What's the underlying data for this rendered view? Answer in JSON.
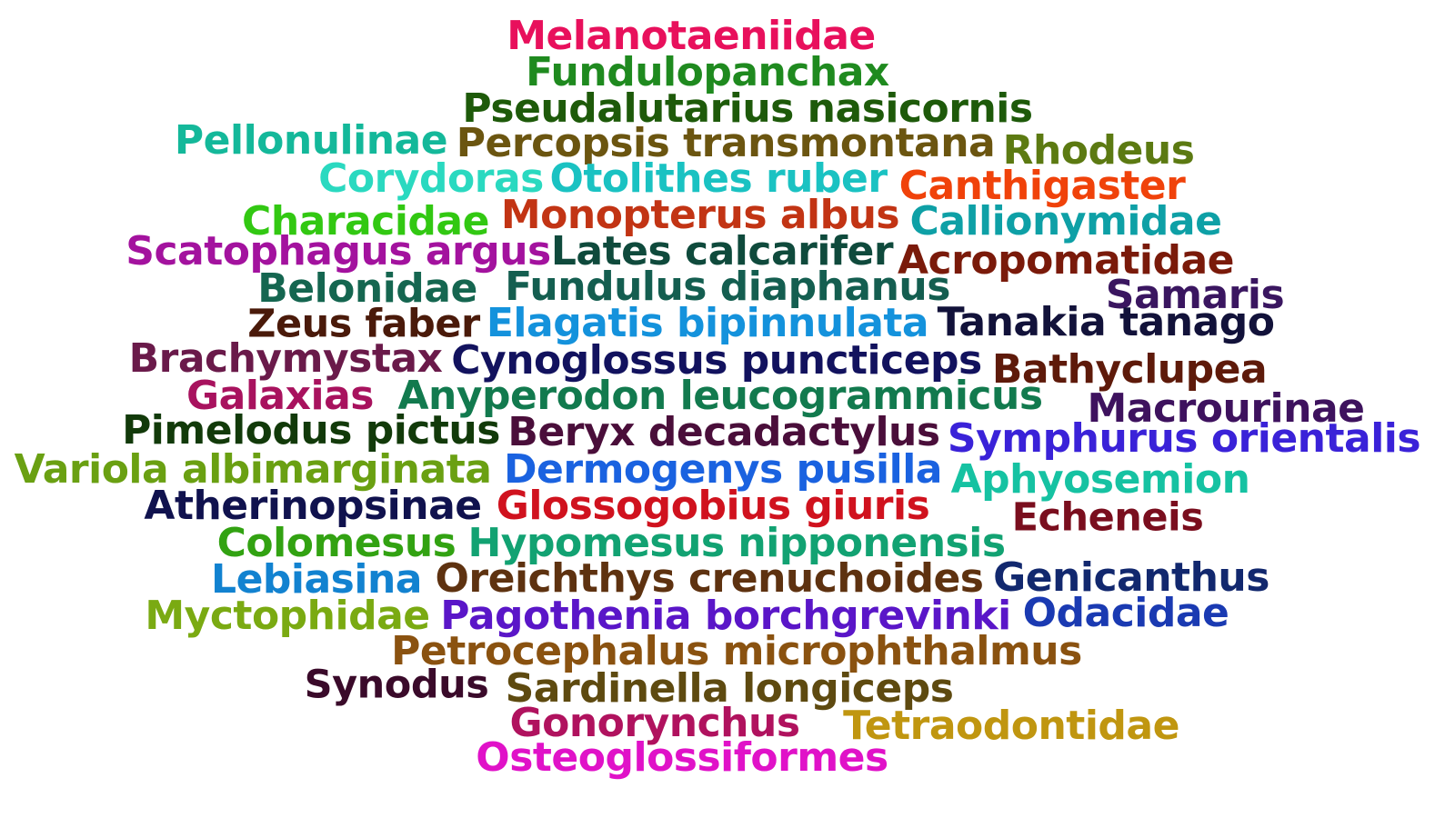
{
  "words": [
    {
      "text": "Melanotaeniidae",
      "color": "#e8105c"
    },
    {
      "text": "Fundulopanchax",
      "color": "#1f8a1f"
    },
    {
      "text": "Pseudalutarius nasicornis",
      "color": "#1e5a0a"
    },
    {
      "text": "Pellonulinae",
      "color": "#14b89a"
    },
    {
      "text": "Percopsis transmontana",
      "color": "#6b5510"
    },
    {
      "text": "Rhodeus",
      "color": "#5c7a12"
    },
    {
      "text": "Corydoras",
      "color": "#2ad9c0"
    },
    {
      "text": "Otolithes ruber",
      "color": "#1ac2c2"
    },
    {
      "text": "Canthigaster",
      "color": "#f0420a"
    },
    {
      "text": "Characidae",
      "color": "#32c812"
    },
    {
      "text": "Monopterus albus",
      "color": "#c23414"
    },
    {
      "text": "Callionymidae",
      "color": "#0ea0a6"
    },
    {
      "text": "Scatophagus argus",
      "color": "#a3129e"
    },
    {
      "text": "Lates calcarifer",
      "color": "#0f4a3c"
    },
    {
      "text": "Acropomatidae",
      "color": "#7a1a0a"
    },
    {
      "text": "Belonidae",
      "color": "#156650"
    },
    {
      "text": "Fundulus diaphanus",
      "color": "#145e50"
    },
    {
      "text": "Samaris",
      "color": "#3a1660"
    },
    {
      "text": "Zeus faber",
      "color": "#4a1a0a"
    },
    {
      "text": "Elagatis bipinnulata",
      "color": "#1492dc"
    },
    {
      "text": "Tanakia tanago",
      "color": "#12123a"
    },
    {
      "text": "Brachymystax",
      "color": "#6a1a4a"
    },
    {
      "text": "Cynoglossus puncticeps",
      "color": "#12125e"
    },
    {
      "text": "Bathyclupea",
      "color": "#5e1a0a"
    },
    {
      "text": "Galaxias",
      "color": "#a8125e"
    },
    {
      "text": "Anyperodon leucogrammicus",
      "color": "#127a4e"
    },
    {
      "text": "Macrourinae",
      "color": "#3e125e"
    },
    {
      "text": "Pimelodus pictus",
      "color": "#123a0a"
    },
    {
      "text": "Beryx decadactylus",
      "color": "#4a0e3a"
    },
    {
      "text": "Symphurus orientalis",
      "color": "#3a22d8"
    },
    {
      "text": "Variola albimarginata",
      "color": "#6aa012"
    },
    {
      "text": "Dermogenys pusilla",
      "color": "#1a62e0"
    },
    {
      "text": "Aphyosemion",
      "color": "#16c2a2"
    },
    {
      "text": "Atherinopsinae",
      "color": "#10124e"
    },
    {
      "text": "Glossogobius giuris",
      "color": "#d0121e"
    },
    {
      "text": "Echeneis",
      "color": "#7a0e1e"
    },
    {
      "text": "Colomesus",
      "color": "#32a212"
    },
    {
      "text": "Hypomesus nipponensis",
      "color": "#12a272"
    },
    {
      "text": "Lebiasina",
      "color": "#1282d0"
    },
    {
      "text": "Oreichthys crenuchoides",
      "color": "#5e3210"
    },
    {
      "text": "Genicanthus",
      "color": "#12286e"
    },
    {
      "text": "Myctophidae",
      "color": "#7aaa12"
    },
    {
      "text": "Pagothenia borchgrevinki",
      "color": "#5a16c8"
    },
    {
      "text": "Odacidae",
      "color": "#1a3ab2"
    },
    {
      "text": "Petrocephalus microphthalmus",
      "color": "#8a5210"
    },
    {
      "text": "Synodus",
      "color": "#3a0a2a"
    },
    {
      "text": "Sardinella longiceps",
      "color": "#5e4a10"
    },
    {
      "text": "Gonorynchus",
      "color": "#b0125e"
    },
    {
      "text": "Tetraodontidae",
      "color": "#c09610"
    },
    {
      "text": "Osteoglossiformes",
      "color": "#e012c8"
    }
  ]
}
